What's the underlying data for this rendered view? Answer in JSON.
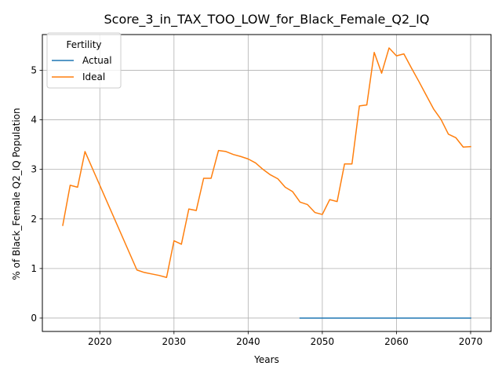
{
  "chart_data": {
    "type": "line",
    "title": "Score_3_in_TAX_TOO_LOW_for_Black_Female_Q2_IQ",
    "xlabel": "Years",
    "ylabel": "% of Black_Female Q2_IQ Population",
    "xlim": [
      2012.25,
      2072.75
    ],
    "ylim": [
      -0.27,
      5.72
    ],
    "xticks": [
      2020,
      2030,
      2040,
      2050,
      2060,
      2070
    ],
    "yticks": [
      0,
      1,
      2,
      3,
      4,
      5
    ],
    "xtick_labels": [
      "2020",
      "2030",
      "2040",
      "2050",
      "2060",
      "2070"
    ],
    "ytick_labels": [
      "0",
      "1",
      "2",
      "3",
      "4",
      "5"
    ],
    "grid": true,
    "legend": {
      "title": "Fertility",
      "placement": "top-left",
      "entries": [
        "Actual",
        "Ideal"
      ]
    },
    "series": [
      {
        "name": "Actual",
        "color": "#1f77b4",
        "x": [
          2047,
          2070
        ],
        "y": [
          0.0,
          0.0
        ]
      },
      {
        "name": "Ideal",
        "color": "#ff7f0e",
        "x": [
          2015,
          2016,
          2017,
          2018,
          2025,
          2026,
          2027,
          2028,
          2029,
          2030,
          2031,
          2032,
          2033,
          2034,
          2035,
          2036,
          2037,
          2038,
          2039,
          2040,
          2041,
          2042,
          2043,
          2044,
          2045,
          2046,
          2047,
          2048,
          2049,
          2050,
          2051,
          2052,
          2053,
          2054,
          2055,
          2056,
          2057,
          2058,
          2059,
          2060,
          2061,
          2062,
          2063,
          2064,
          2065,
          2066,
          2067,
          2068,
          2069,
          2070
        ],
        "y": [
          1.87,
          2.68,
          2.64,
          3.36,
          0.97,
          0.92,
          0.89,
          0.86,
          0.82,
          1.56,
          1.49,
          2.2,
          2.17,
          2.82,
          2.82,
          3.38,
          3.36,
          3.3,
          3.26,
          3.21,
          3.13,
          3.0,
          2.89,
          2.81,
          2.64,
          2.55,
          2.34,
          2.29,
          2.13,
          2.09,
          2.39,
          2.35,
          3.11,
          3.11,
          4.28,
          4.3,
          5.36,
          4.94,
          5.45,
          5.29,
          5.33,
          5.05,
          4.78,
          4.5,
          4.22,
          4.01,
          3.71,
          3.64,
          3.45,
          3.46
        ]
      }
    ]
  }
}
